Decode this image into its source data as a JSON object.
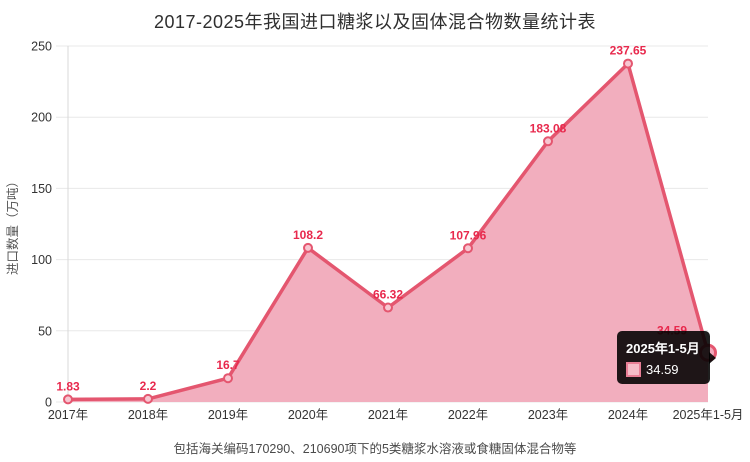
{
  "page": {
    "title": "2017-2025年我国进口糖浆以及固体混合物数量统计表",
    "footnote": "包括海关编码170290、210690项下的5类糖浆水溶液或食糖固体混合物等"
  },
  "chart_data": {
    "type": "area",
    "title": "2017-2025年我国进口糖浆以及固体混合物数量统计表",
    "xlabel": "",
    "ylabel": "进口数量（万吨）",
    "categories": [
      "2017年",
      "2018年",
      "2019年",
      "2020年",
      "2021年",
      "2022年",
      "2023年",
      "2024年",
      "2025年1-5月"
    ],
    "values": [
      1.83,
      2.2,
      16.7,
      108.2,
      66.32,
      107.96,
      183.08,
      237.65,
      34.59
    ],
    "point_labels": [
      "1.83",
      "2.2",
      "16.7",
      "108.2",
      "66.32",
      "107.96",
      "183.08",
      "237.65",
      "34.59"
    ],
    "ylim": [
      0,
      250
    ],
    "yticks": [
      0,
      50,
      100,
      150,
      200,
      250
    ],
    "grid": "horizontal",
    "legend": "none",
    "highlighted_index": 8,
    "colors": {
      "line": "#e4566f",
      "area_fill": "#f2aebe",
      "marker_fill": "#f7c6d1",
      "value_label": "#e8294d",
      "grid_line": "#e8e8e8",
      "axis_line": "#d8d8d8",
      "tick_text": "#333333"
    }
  },
  "tooltip": {
    "title": "2025年1-5月",
    "value": "34.59"
  }
}
